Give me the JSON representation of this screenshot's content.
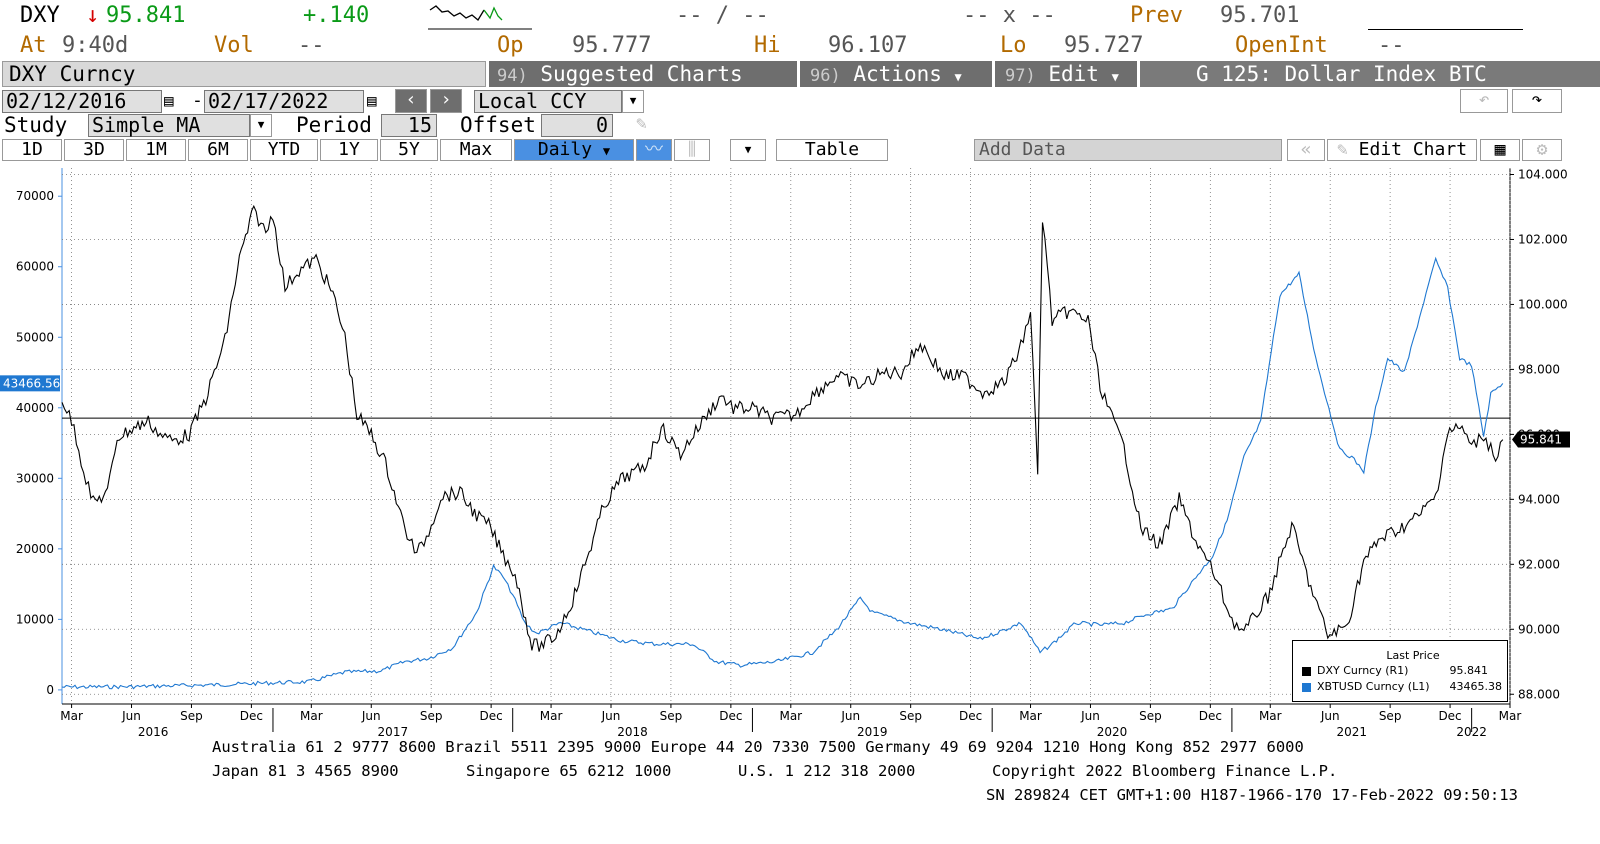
{
  "quote": {
    "ticker": "DXY",
    "arrow": "↓",
    "last": "95.841",
    "change": "+.140",
    "bid_ask": "-- / --",
    "size": "-- x --",
    "prev_label": "Prev",
    "prev_value": "95.701",
    "at_label": "At",
    "time": "9:40d",
    "vol_label": "Vol",
    "vol_value": "--",
    "op_label": "Op",
    "op_value": "95.777",
    "hi_label": "Hi",
    "hi_value": "96.107",
    "lo_label": "Lo",
    "lo_value": "95.727",
    "openint_label": "OpenInt",
    "openint_value": "--"
  },
  "toolbar": {
    "security": "DXY Curncy",
    "suggested": {
      "num": "94)",
      "label": "Suggested Charts"
    },
    "actions": {
      "num": "96)",
      "label": "Actions"
    },
    "edit": {
      "num": "97)",
      "label": "Edit"
    },
    "screen_title": "G 125: Dollar Index BTC"
  },
  "range": {
    "start_date": "02/12/2016",
    "end_date": "02/17/2022",
    "currency": "Local CCY"
  },
  "study": {
    "label": "Study",
    "value": "Simple MA",
    "period_label": "Period",
    "period_value": "15",
    "offset_label": "Offset",
    "offset_value": "0"
  },
  "periods": [
    "1D",
    "3D",
    "1M",
    "6M",
    "YTD",
    "1Y",
    "5Y",
    "Max"
  ],
  "frequency": "Daily",
  "table_label": "Table",
  "add_data_label": "Add Data",
  "edit_chart_label": "Edit Chart",
  "colors": {
    "dxy": "#000000",
    "xbt": "#1f78d1",
    "accent": "#4a90e2"
  },
  "chart_data": {
    "type": "line",
    "left_axis": {
      "ticks": [
        "0",
        "10000",
        "20000",
        "30000",
        "40000",
        "50000",
        "60000",
        "70000"
      ],
      "range": [
        -2000,
        74000
      ],
      "series": "XBTUSD Curncy"
    },
    "right_axis": {
      "ticks": [
        "88.000",
        "90.000",
        "92.000",
        "94.000",
        "96.000",
        "98.000",
        "100.000",
        "102.000",
        "104.000"
      ],
      "range": [
        87.7,
        104.2
      ],
      "series": "DXY Curncy"
    },
    "x_ticks": [
      "Mar",
      "Jun",
      "Sep",
      "Dec",
      "Mar",
      "Jun",
      "Sep",
      "Dec",
      "Mar",
      "Jun",
      "Sep",
      "Dec",
      "Mar",
      "Jun",
      "Sep",
      "Dec",
      "Mar",
      "Jun",
      "Sep",
      "Dec",
      "Mar",
      "Jun",
      "Sep",
      "Dec",
      "Mar"
    ],
    "years": [
      "2016",
      "2017",
      "2018",
      "2019",
      "2020",
      "2021",
      "2022"
    ],
    "x_range": [
      2016.12,
      2022.16
    ],
    "grid": true,
    "horizontal_line_dxy": 96.5,
    "series": [
      {
        "name": "DXY Curncy",
        "axis": "right",
        "x": [
          2016.12,
          2016.17,
          2016.21,
          2016.25,
          2016.31,
          2016.35,
          2016.42,
          2016.48,
          2016.53,
          2016.58,
          2016.65,
          2016.72,
          2016.8,
          2016.86,
          2016.92,
          2016.97,
          2017.0,
          2017.05,
          2017.1,
          2017.18,
          2017.25,
          2017.3,
          2017.35,
          2017.41,
          2017.47,
          2017.55,
          2017.6,
          2017.65,
          2017.7,
          2017.78,
          2017.85,
          2017.9,
          2017.96,
          2018.01,
          2018.08,
          2018.12,
          2018.18,
          2018.25,
          2018.31,
          2018.38,
          2018.45,
          2018.55,
          2018.62,
          2018.7,
          2018.8,
          2018.87,
          2018.92,
          2019.0,
          2019.08,
          2019.18,
          2019.25,
          2019.35,
          2019.45,
          2019.55,
          2019.62,
          2019.7,
          2019.8,
          2019.88,
          2019.96,
          2020.05,
          2020.12,
          2020.16,
          2020.19,
          2020.21,
          2020.25,
          2020.32,
          2020.4,
          2020.45,
          2020.5,
          2020.55,
          2020.62,
          2020.7,
          2020.78,
          2020.85,
          2020.92,
          2021.0,
          2021.05,
          2021.15,
          2021.25,
          2021.32,
          2021.4,
          2021.48,
          2021.55,
          2021.62,
          2021.7,
          2021.78,
          2021.85,
          2021.9,
          2021.96,
          2022.0,
          2022.05,
          2022.1,
          2022.13
        ],
        "values": [
          97.1,
          96.2,
          94.9,
          93.9,
          94.2,
          95.9,
          96.2,
          96.4,
          96.0,
          95.8,
          96.0,
          97.1,
          98.9,
          101.4,
          102.9,
          102.2,
          102.8,
          100.5,
          101.0,
          101.4,
          100.3,
          99.0,
          96.6,
          96.0,
          95.1,
          93.1,
          92.3,
          93.0,
          94.1,
          94.2,
          93.5,
          93.2,
          92.3,
          91.7,
          89.5,
          89.5,
          89.8,
          90.9,
          92.2,
          93.8,
          94.6,
          95.0,
          96.2,
          95.4,
          96.5,
          97.2,
          96.8,
          96.8,
          96.5,
          96.6,
          97.2,
          97.8,
          97.5,
          97.9,
          97.9,
          98.8,
          97.8,
          97.8,
          97.3,
          97.6,
          98.7,
          99.8,
          94.8,
          102.7,
          99.5,
          99.8,
          99.5,
          97.5,
          96.5,
          95.6,
          93.1,
          92.6,
          94.0,
          92.7,
          91.8,
          90.3,
          89.9,
          91.0,
          93.2,
          91.5,
          89.8,
          90.1,
          92.1,
          92.8,
          93.1,
          93.5,
          94.1,
          96.1,
          96.2,
          95.6,
          96.0,
          95.3,
          95.84
        ]
      },
      {
        "name": "XBTUSD Curncy",
        "axis": "left",
        "x": [
          2016.12,
          2016.4,
          2016.6,
          2016.8,
          2017.0,
          2017.15,
          2017.3,
          2017.45,
          2017.55,
          2017.65,
          2017.75,
          2017.85,
          2017.92,
          2017.96,
          2018.0,
          2018.05,
          2018.1,
          2018.2,
          2018.3,
          2018.45,
          2018.6,
          2018.75,
          2018.85,
          2018.95,
          2019.1,
          2019.25,
          2019.35,
          2019.45,
          2019.5,
          2019.55,
          2019.65,
          2019.8,
          2019.95,
          2020.05,
          2020.12,
          2020.2,
          2020.25,
          2020.35,
          2020.45,
          2020.55,
          2020.65,
          2020.75,
          2020.85,
          2020.92,
          2020.98,
          2021.05,
          2021.12,
          2021.2,
          2021.28,
          2021.35,
          2021.45,
          2021.5,
          2021.55,
          2021.6,
          2021.65,
          2021.72,
          2021.8,
          2021.85,
          2021.9,
          2021.95,
          2022.0,
          2022.05,
          2022.08,
          2022.13
        ],
        "values": [
          400,
          450,
          600,
          750,
          1000,
          1150,
          2500,
          2700,
          4000,
          4500,
          6000,
          11000,
          17500,
          16000,
          13500,
          9500,
          8000,
          9500,
          8500,
          7000,
          6500,
          6500,
          4000,
          3500,
          4000,
          5300,
          8500,
          13000,
          11000,
          10500,
          9500,
          8500,
          7200,
          8500,
          9500,
          5300,
          6500,
          9500,
          9200,
          9500,
          10800,
          11500,
          16000,
          19000,
          24000,
          33000,
          38000,
          56000,
          59000,
          47000,
          34000,
          33000,
          31000,
          40000,
          47000,
          45000,
          55000,
          61000,
          57000,
          47000,
          46000,
          36000,
          42000,
          43465
        ]
      }
    ]
  },
  "legend": {
    "title": "Last Price",
    "rows": [
      {
        "label": "DXY Curncy  (R1)",
        "value": "95.841"
      },
      {
        "label": "XBTUSD Curncy  (L1)",
        "value": "43465.38"
      }
    ]
  },
  "axis_flags": {
    "left": "43466.56",
    "right": "95.841"
  },
  "footer": {
    "line1": "Australia 61 2 9777 8600 Brazil 5511 2395 9000 Europe 44 20 7330 7500 Germany 49 69 9204 1210 Hong Kong 852 2977 6000",
    "line2a": "Japan 81 3 4565 8900",
    "line2b": "Singapore 65 6212 1000",
    "line2c": "U.S. 1 212 318 2000",
    "line2d": "Copyright 2022 Bloomberg Finance L.P.",
    "line3": "SN 289824 CET  GMT+1:00 H187-1966-170 17-Feb-2022 09:50:13"
  }
}
